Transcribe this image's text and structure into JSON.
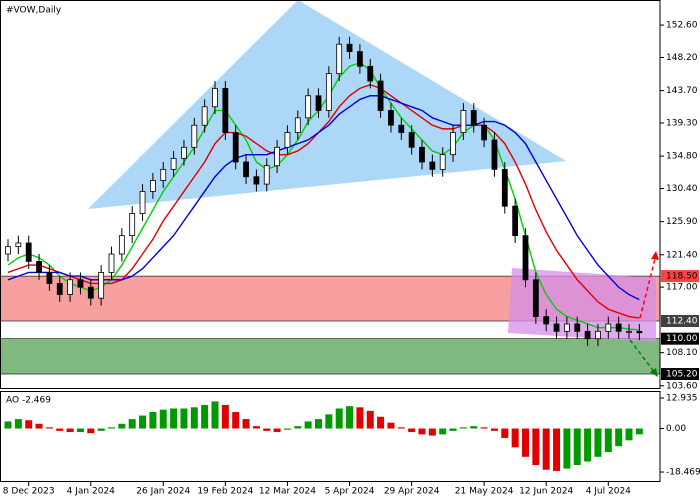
{
  "chart_data": [
    {
      "type": "candlestick",
      "title": "#VOW,Daily",
      "x": [
        null,
        null,
        "8 Dec 2023",
        null,
        null,
        null,
        null,
        null,
        "4 Jan 2024",
        null,
        null,
        null,
        null,
        null,
        null,
        "26 Jan 2024",
        null,
        null,
        null,
        null,
        null,
        "19 Feb 2024",
        null,
        null,
        null,
        null,
        null,
        "12 Mar 2024",
        null,
        null,
        null,
        null,
        null,
        "5 Apr 2024",
        null,
        null,
        null,
        null,
        null,
        "29 Apr 2024",
        null,
        null,
        null,
        null,
        null,
        null,
        "21 May 2024",
        null,
        null,
        null,
        null,
        null,
        "12 Jun 2024",
        null,
        null,
        null,
        null,
        null,
        "4 Jul 2024",
        null,
        null,
        null
      ],
      "open": [
        121.5,
        122.5,
        123,
        120.5,
        119,
        117.5,
        116,
        118,
        117,
        115.5,
        119,
        121.5,
        124,
        127,
        130,
        131.5,
        133,
        134.5,
        136,
        139,
        141.5,
        144,
        138,
        134,
        132,
        131,
        133.5,
        136,
        138,
        140,
        143,
        141,
        146,
        150,
        149,
        147,
        145,
        141,
        139,
        138,
        136,
        134,
        133,
        135,
        138,
        141,
        139,
        137,
        133,
        128,
        124,
        118,
        113,
        112,
        111,
        112,
        111,
        110,
        111,
        112,
        111,
        111
      ],
      "high": [
        123.5,
        124,
        124,
        121.5,
        120,
        118.5,
        119,
        119,
        118,
        120,
        122.5,
        125,
        128,
        131,
        132.5,
        134,
        135.5,
        137,
        140,
        142.5,
        145,
        145,
        139,
        135,
        133,
        134.5,
        137,
        139,
        141,
        144,
        144,
        147,
        151,
        151,
        150,
        148,
        146,
        142,
        140,
        139,
        137,
        135,
        136,
        139,
        142,
        142,
        140,
        138,
        134,
        129,
        125,
        119,
        114,
        113,
        113,
        113,
        112,
        112,
        113,
        113,
        112,
        112
      ],
      "low": [
        120.5,
        121.5,
        119.5,
        118,
        116.5,
        115,
        115,
        116,
        114.5,
        114.5,
        118,
        120.5,
        123,
        126,
        129,
        130.5,
        132,
        133.5,
        135,
        138,
        140.5,
        137,
        133,
        131,
        130,
        130,
        132.5,
        135,
        137,
        139,
        140,
        140,
        145,
        148,
        146,
        144,
        140,
        138,
        137,
        135,
        133,
        132,
        132,
        134,
        137,
        138,
        136,
        132,
        127,
        123,
        117,
        112,
        111,
        110,
        110,
        110,
        109,
        109,
        110,
        110,
        110,
        109.8
      ],
      "close": [
        122.5,
        123,
        120.5,
        119,
        117.5,
        116,
        118,
        117,
        115.5,
        119,
        121.5,
        124,
        127,
        130,
        131.5,
        133,
        134.5,
        136,
        139,
        141.5,
        144,
        138,
        134,
        132,
        131,
        133.5,
        136,
        138,
        140,
        143,
        141,
        146,
        150,
        149,
        147,
        145,
        141,
        139,
        138,
        136,
        134,
        133,
        135,
        138,
        141,
        139,
        137,
        133,
        128,
        124,
        118,
        113,
        112,
        111,
        112,
        111,
        110,
        111,
        112,
        111,
        111,
        110.8
      ],
      "series": [
        {
          "color": "#00d000",
          "values": [
            120,
            121,
            121.5,
            121,
            120,
            118.5,
            117.5,
            117,
            116.5,
            117,
            118,
            120,
            122.5,
            125,
            127.5,
            130,
            132,
            134,
            136,
            138.5,
            141,
            141,
            139,
            137,
            134,
            133,
            133.5,
            135,
            137,
            139.5,
            141,
            143,
            145.5,
            147,
            147.5,
            146.5,
            144,
            142,
            140,
            138.5,
            137,
            135.5,
            135,
            136,
            138,
            139,
            139,
            137,
            133,
            129,
            124,
            119,
            116,
            114,
            113,
            112.5,
            112,
            111.5,
            111.5,
            111.5,
            111.3,
            111.2
          ]
        },
        {
          "color": "#e00000",
          "values": [
            119,
            119.5,
            120,
            120,
            119.5,
            119,
            118.5,
            118,
            117.5,
            117.5,
            117.5,
            118,
            119.5,
            121.5,
            123.5,
            126,
            128,
            130,
            132,
            134,
            136.5,
            138,
            138,
            137.5,
            136.5,
            135.5,
            135,
            135,
            135.5,
            136.5,
            138,
            139.5,
            141.5,
            143,
            144,
            144.5,
            144,
            143,
            142,
            141,
            140,
            139,
            138.5,
            138.5,
            139,
            139,
            139,
            138,
            136.5,
            134,
            131,
            127.5,
            124.5,
            122,
            120,
            118,
            116.5,
            115,
            114,
            113.5,
            113,
            112.8
          ]
        },
        {
          "color": "#0000e0",
          "values": [
            118,
            118.5,
            119,
            119,
            119,
            119,
            118.5,
            118.5,
            118,
            118,
            118,
            118,
            118.5,
            119.5,
            121,
            122.5,
            124,
            126,
            128,
            130,
            132,
            133.5,
            134.5,
            135,
            135,
            135,
            135.5,
            136,
            136.5,
            137,
            138,
            139,
            140.5,
            141.5,
            142.5,
            143,
            143,
            142.5,
            142,
            141.5,
            141,
            140,
            139.5,
            139,
            139,
            139,
            139.5,
            139.5,
            139,
            138,
            136.5,
            134,
            131.5,
            129,
            126.5,
            124,
            122,
            120,
            118.5,
            117,
            116,
            115.3
          ]
        }
      ],
      "ylim": [
        103.3,
        155.6
      ],
      "yticks": [
        {
          "value": 152.6,
          "label": "152.60"
        },
        {
          "value": 148.2,
          "label": "148.20"
        },
        {
          "value": 143.7,
          "label": "143.70"
        },
        {
          "value": 139.3,
          "label": "139.30"
        },
        {
          "value": 134.8,
          "label": "134.80"
        },
        {
          "value": 130.4,
          "label": "130.40"
        },
        {
          "value": 125.9,
          "label": "125.90"
        },
        {
          "value": 121.4,
          "label": "121.40"
        },
        {
          "value": 117,
          "label": "117.00"
        },
        {
          "value": 108.1,
          "label": "108.10"
        },
        {
          "value": 103.6,
          "label": "103.60"
        }
      ],
      "levels": [
        {
          "value": 118.5,
          "label": "118.50",
          "color": "#ff4040"
        },
        {
          "value": 112.4,
          "label": "112.40",
          "color": "#404040"
        },
        {
          "value": 110,
          "label": "110.00",
          "color": "#000000"
        },
        {
          "value": 105.2,
          "label": "105.20",
          "color": "#000000"
        }
      ]
    },
    {
      "type": "bar",
      "title": "AO -2.469",
      "values": [
        3,
        4,
        3.5,
        2,
        0.5,
        -1,
        -1.5,
        -1.5,
        -2,
        -1,
        0.5,
        2,
        4,
        5.5,
        7,
        8,
        8.5,
        8.5,
        9,
        10,
        11.5,
        10,
        7,
        4,
        1,
        -1,
        -1.5,
        -0.5,
        1,
        3,
        4,
        6,
        8.5,
        9.5,
        9,
        7.5,
        5,
        2.5,
        0.5,
        -1.5,
        -2.5,
        -3,
        -2.5,
        -1,
        0.5,
        1,
        0.5,
        -1,
        -4,
        -8,
        -12,
        -15.5,
        -17.5,
        -18,
        -17,
        -15.5,
        -14,
        -12,
        -10,
        -7.5,
        -5,
        -2.469
      ],
      "ylim": [
        -22.7,
        15.5
      ],
      "yticks": [
        {
          "value": 12.935,
          "label": "12.935"
        },
        {
          "value": 0,
          "label": "0.00"
        },
        {
          "value": -18.469,
          "label": "-18.469"
        }
      ],
      "colors": {
        "up": "#009a00",
        "down": "#e00000"
      }
    }
  ]
}
